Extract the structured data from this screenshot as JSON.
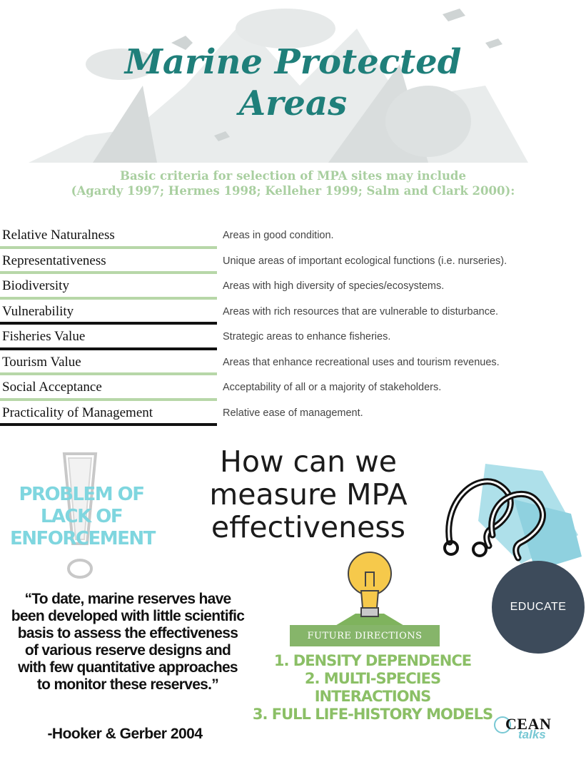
{
  "header": {
    "title_line1": "Marine Protected",
    "title_line2": "Areas",
    "intro_line1": "Basic criteria for selection of MPA sites may include",
    "intro_line2": "(Agardy 1997; Hermes 1998; Kelleher 1999; Salm and Clark 2000):"
  },
  "criteria": [
    {
      "name": "Relative Naturalness",
      "desc": "Areas in good condition."
    },
    {
      "name": "Representativeness",
      "desc": "Unique areas of important ecological functions (i.e. nurseries)."
    },
    {
      "name": "Biodiversity",
      "desc": "Areas with high diversity of species/ecosystems."
    },
    {
      "name": "Vulnerability",
      "desc": "Areas with rich resources that are vulnerable to disturbance."
    },
    {
      "name": "Fisheries Value",
      "desc": "Strategic areas to enhance fisheries."
    },
    {
      "name": "Tourism Value",
      "desc": "Areas that enhance recreational uses and tourism revenues."
    },
    {
      "name": "Social Acceptance",
      "desc": "Acceptability of all or a majority of stakeholders."
    },
    {
      "name": "Practicality of Management",
      "desc": "Relative ease of management."
    }
  ],
  "problem": {
    "line1": "PROBLEM OF",
    "line2": "LACK OF",
    "line3": "ENFORCEMENT"
  },
  "question": {
    "line1": "How can we",
    "line2": "measure MPA",
    "line3": "effectiveness"
  },
  "educate_label": "EDUCATE",
  "quote": {
    "text": "“To date, marine reserves have been developed with little scientific basis to assess the effectiveness of various reserve designs and with few quantitative approaches to monitor these reserves.”",
    "citation": "-Hooker & Gerber 2004"
  },
  "future": {
    "banner": "FUTURE DIRECTIONS",
    "items": [
      "1. DENSITY DEPENDENCE",
      "2. MULTI-SPECIES INTERACTIONS",
      "3. FULL LIFE-HISTORY MODELS"
    ]
  },
  "logo": {
    "ocean": "CEAN",
    "talks": "talks"
  },
  "colors": {
    "title": "#1f7f7a",
    "intro": "#a9cfa0",
    "line_dark": "#111111",
    "line_green": "#b7d7a8",
    "problem": "#7fd6df",
    "future": "#8bbf66",
    "educate_bg": "#3d4b5b"
  }
}
